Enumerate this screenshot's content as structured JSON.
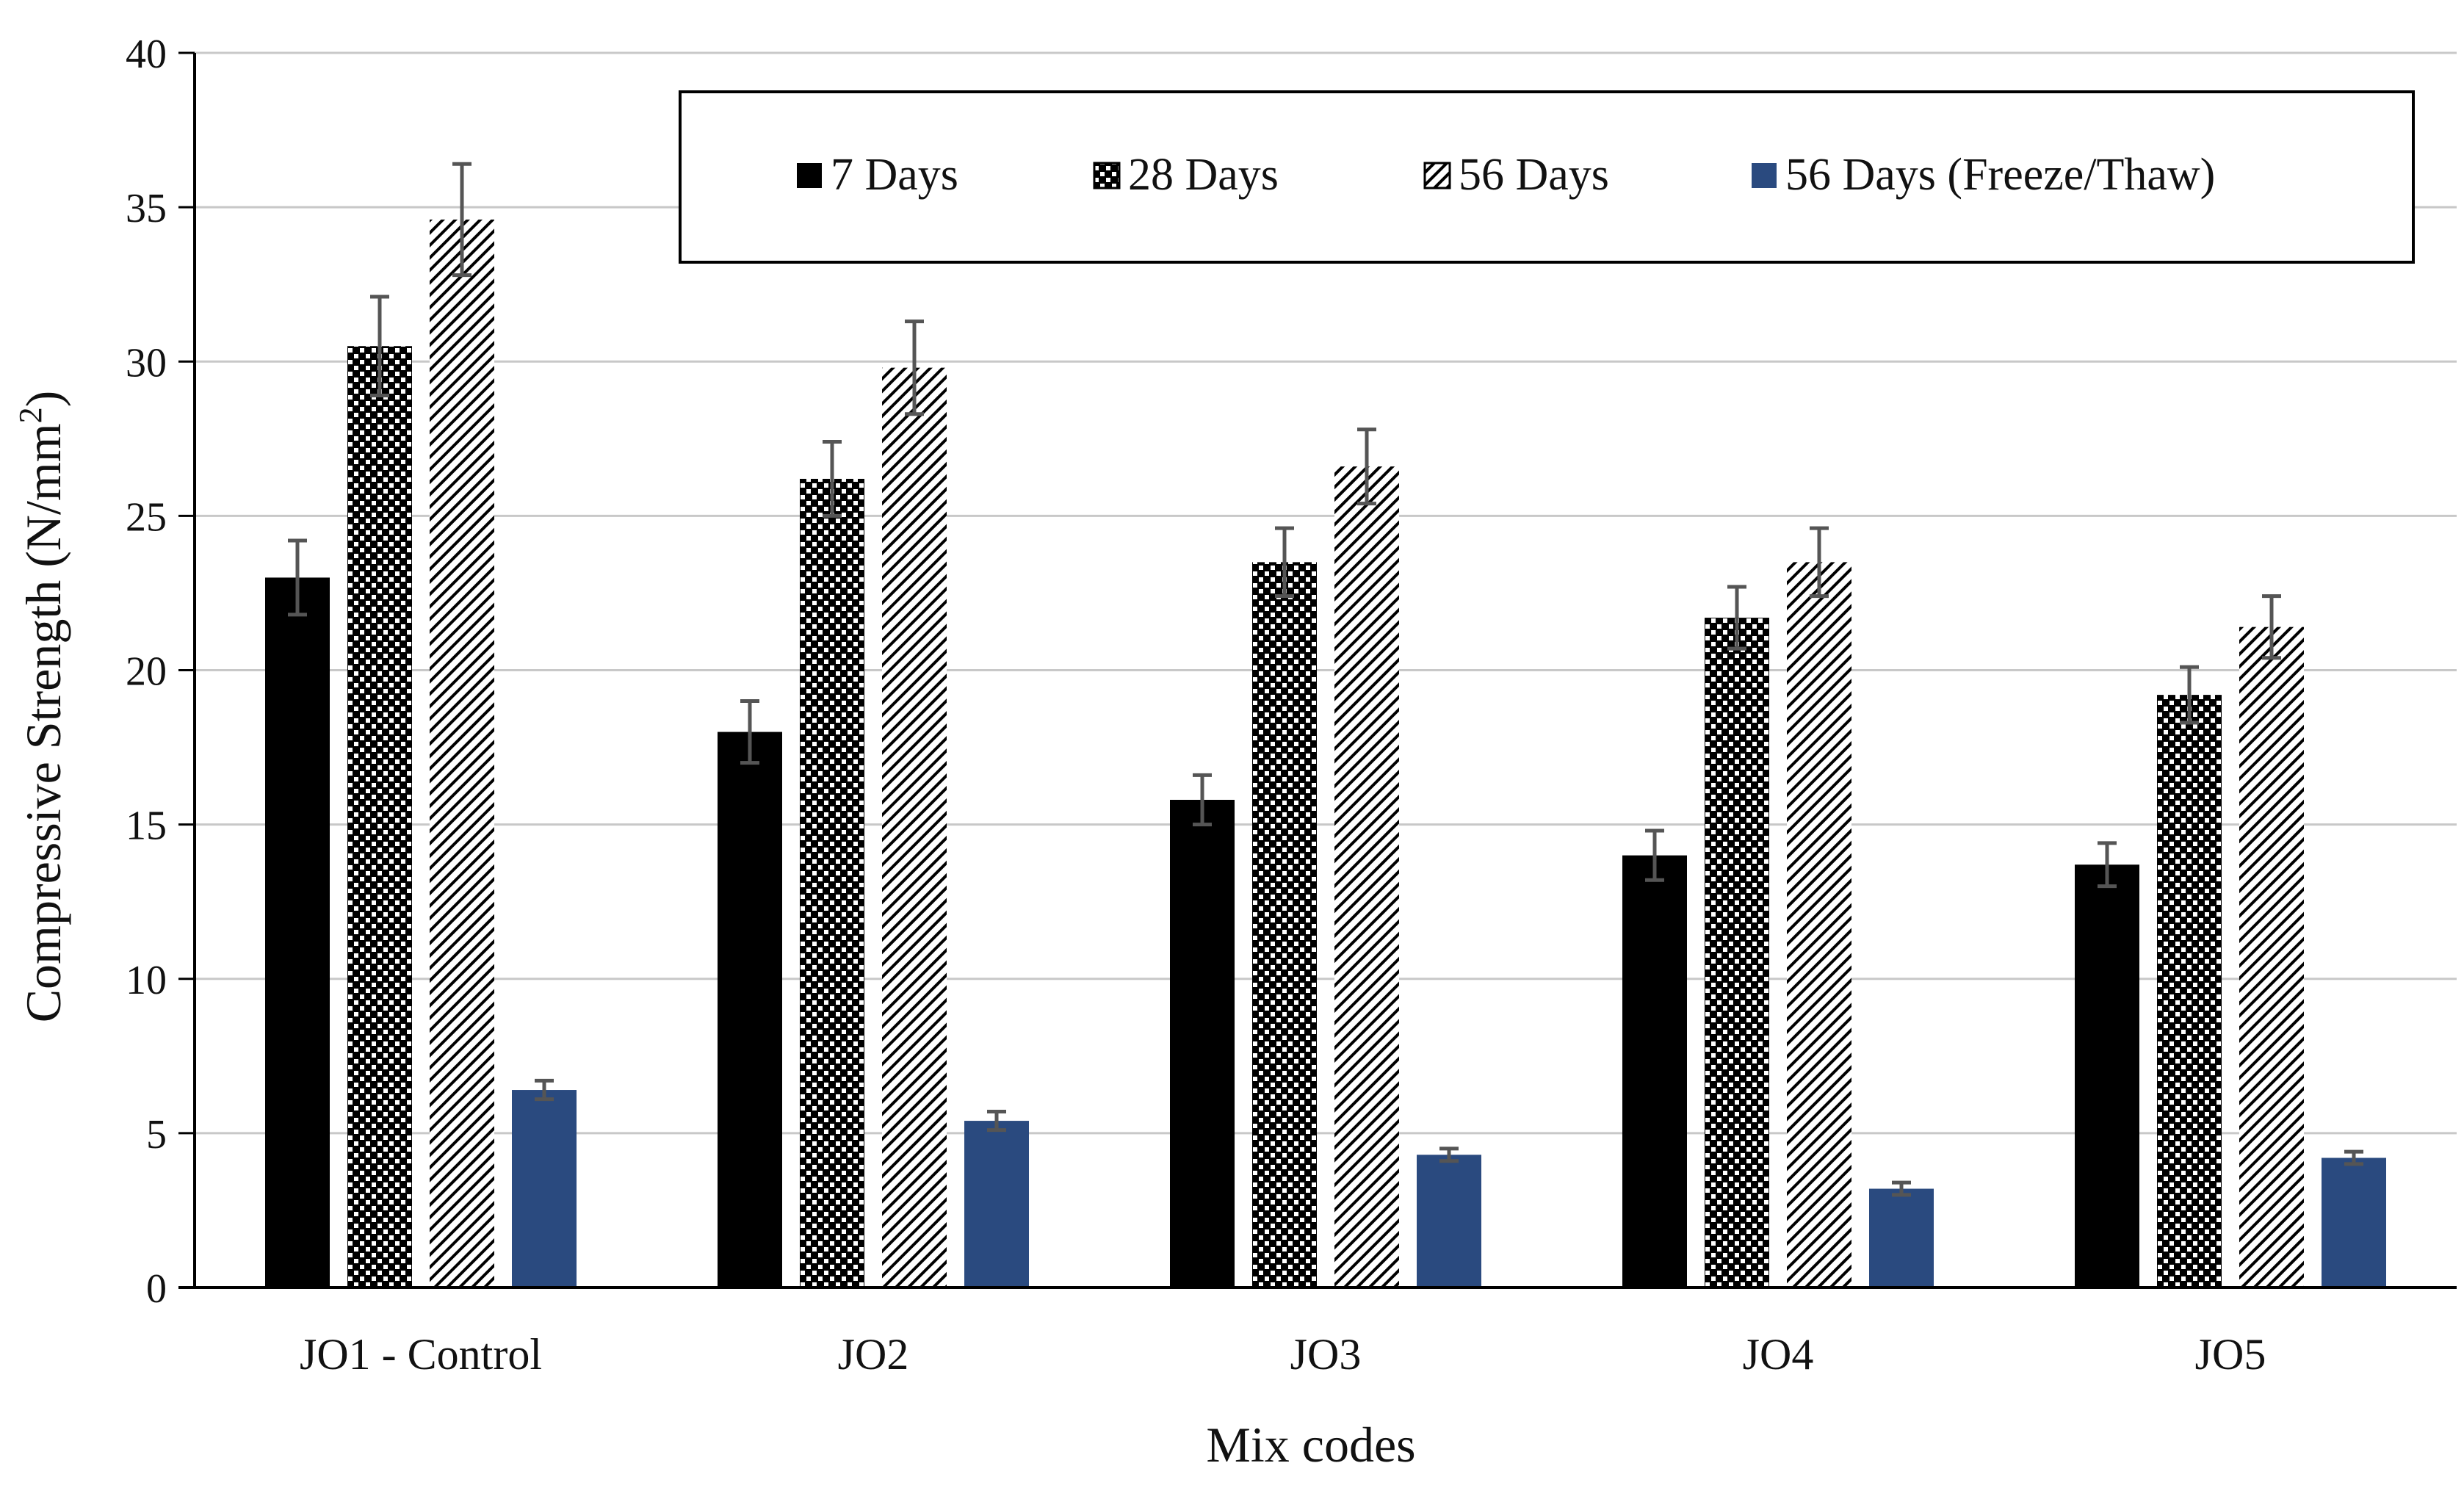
{
  "chart_data": {
    "type": "bar",
    "title": "",
    "xlabel": "Mix codes",
    "ylabel": "Compressive Strength (N/mm",
    "ylabel_sup": "2",
    "ylabel_close": ")",
    "ylim": [
      0,
      40
    ],
    "yticks": [
      0,
      5,
      10,
      15,
      20,
      25,
      30,
      35,
      40
    ],
    "grid": true,
    "legend_position": "top-right",
    "categories": [
      "JO1 - Control",
      "JO2",
      "JO3",
      "JO4",
      "JO5"
    ],
    "series": [
      {
        "name": "7 Days",
        "pattern": "solid-black",
        "values": [
          23.0,
          18.0,
          15.8,
          14.0,
          13.7
        ],
        "errors": [
          1.2,
          1.0,
          0.8,
          0.8,
          0.7
        ]
      },
      {
        "name": "28 Days",
        "pattern": "dots",
        "values": [
          30.5,
          26.2,
          23.5,
          21.7,
          19.2
        ],
        "errors": [
          1.6,
          1.2,
          1.1,
          1.0,
          0.9
        ]
      },
      {
        "name": "56 Days",
        "pattern": "diagonal-hatch",
        "values": [
          34.6,
          29.8,
          26.6,
          23.5,
          21.4
        ],
        "errors": [
          1.8,
          1.5,
          1.2,
          1.1,
          1.0
        ]
      },
      {
        "name": "56 Days (Freeze/Thaw)",
        "pattern": "solid-navy",
        "values": [
          6.4,
          5.4,
          4.3,
          3.2,
          4.2
        ],
        "errors": [
          0.3,
          0.3,
          0.2,
          0.2,
          0.2
        ]
      }
    ],
    "colors": {
      "bar_black": "#000000",
      "bar_navy": "#2a4a7f",
      "grid": "#c8c8c8",
      "error_bar": "#555555",
      "axis": "#000000"
    }
  }
}
